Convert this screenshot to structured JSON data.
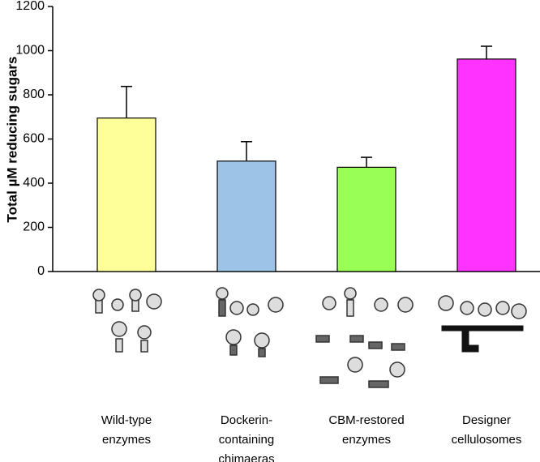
{
  "chart_data": {
    "type": "bar",
    "ylabel": "Total µM reducing sugars",
    "categories": [
      [
        "Wild-type",
        "enzymes"
      ],
      [
        "Dockerin-",
        "containing",
        "chimaeras"
      ],
      [
        "CBM-restored",
        "enzymes"
      ],
      [
        "Designer",
        "cellulosomes"
      ]
    ],
    "values": [
      695,
      500,
      472,
      962
    ],
    "errors": [
      143,
      88,
      45,
      58
    ],
    "colors": [
      "#ffff99",
      "#9dc3e6",
      "#99ff55",
      "#ff33ff"
    ],
    "ylim": [
      0,
      1200
    ],
    "yticks": [
      0,
      200,
      400,
      600,
      800,
      1000,
      1200
    ],
    "grid": false
  }
}
